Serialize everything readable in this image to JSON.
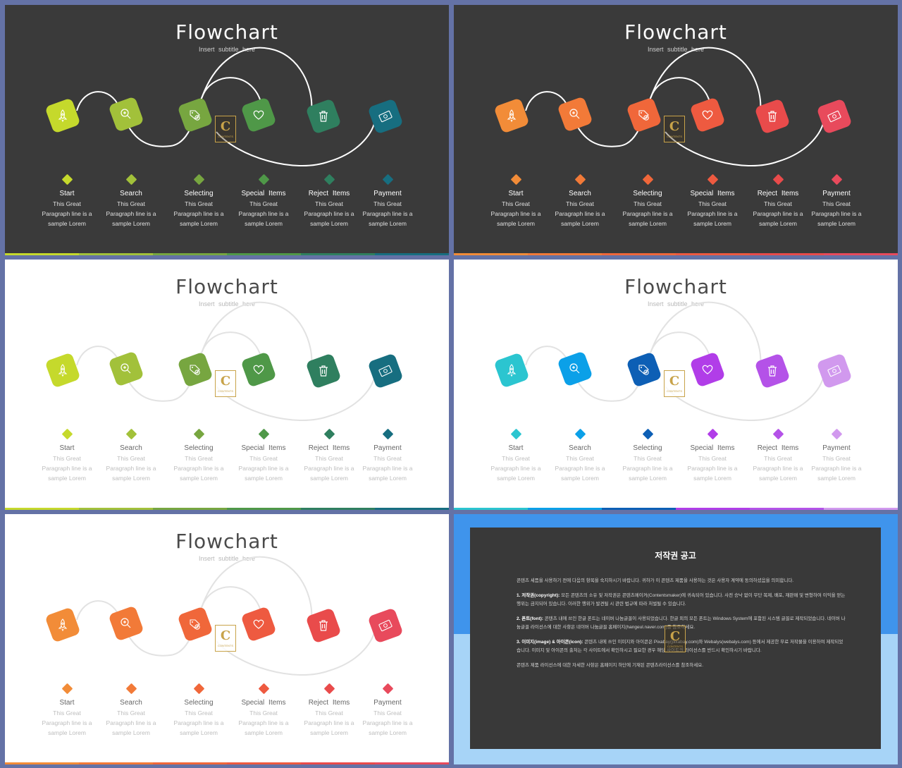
{
  "slide": {
    "title": "Flowchart",
    "subtitle": "Insert  subtitle  here",
    "steps": [
      {
        "name": "Start",
        "icon": "rocket-icon",
        "desc": [
          "This Great",
          "Paragraph line is a",
          "sample Lorem"
        ]
      },
      {
        "name": "Search",
        "icon": "magnifier-icon",
        "desc": [
          "This Great",
          "Paragraph line is a",
          "sample Lorem"
        ]
      },
      {
        "name": "Selecting",
        "icon": "tag-check-icon",
        "desc": [
          "This Great",
          "Paragraph line is a",
          "sample Lorem"
        ]
      },
      {
        "name": "Special  Items",
        "icon": "heart-icon",
        "desc": [
          "This Great",
          "Paragraph line is a",
          "sample Lorem"
        ]
      },
      {
        "name": "Reject  Items",
        "icon": "trash-icon",
        "desc": [
          "This Great",
          "Paragraph line is a",
          "sample Lorem"
        ]
      },
      {
        "name": "Payment",
        "icon": "money-icon",
        "desc": [
          "This Great",
          "Paragraph line is a",
          "sample Lorem"
        ]
      }
    ]
  },
  "logo": {
    "letter": "C",
    "text": "CONTENTS"
  },
  "themes": {
    "green": [
      "#c5d92c",
      "#a2c13a",
      "#77a640",
      "#4f9848",
      "#2f7f5f",
      "#176e80"
    ],
    "orange_red": [
      "#f28c38",
      "#f27a38",
      "#f0673a",
      "#ee5a40",
      "#e94b4b",
      "#e84a5c"
    ],
    "blue_purple": [
      "#2bc5d0",
      "#0ba0e8",
      "#0d5fb5",
      "#b13de8",
      "#b452e8",
      "#d199ee"
    ]
  },
  "notice": {
    "title": "저작권 공고",
    "p1": "콘텐츠 세픔을 사용하기 전에 다음의 항목을 숙지하시기 바랍니다. 귀하가 이 콘텐츠 제품을 사용하는 것은 사용자 계약에 동의하셨음을 의미합니다.",
    "p2_head": "1. 저작권(copyright):",
    "p2": " 모든 콘텐츠의 소유 및 저작권은 콘텐츠메이커(Contentsmaker)에 귀속되어 있습니다. 사전 승낙 없이 무단 복제, 배포, 재판매 및 변형하여 이익을 얻는 행위는 금지되어 있습니다. 이러한 행위가 발견될 시 관련 법규에 따라 처벌될 수 있습니다.",
    "p3_head": "2. 폰트(font):",
    "p3": " 콘텐츠 내에 쓰인 한글 폰트는 네이버 나눔글꼴이 사용되었습니다. 한글 외의 모든 폰트는 Windows System에 포함된 시스템 글꼴로 제작되었습니다. 네이버 나눔글꼴 라이선스에 대한 사항은 네이버 나눔글꼴 홈페이지(hangeul.naver.com)를 참조하세요.",
    "p4_head": "3. 이미지(image) & 아이콘(icon):",
    "p4": " 콘텐츠 내에 쓰인 이미지와 아이콘은 Pixabay(pixabay.com)와 Webalys(webalys.com) 등에서 제공한 무료 저작물을 이용하여 제작되었습니다. 이미지 및 아이콘의 출처는 각 사이트에서 확인하시고 필요한 경우 해당 사이트의 라이선스를 반드시 확인하시기 바랍니다.",
    "p5": "콘텐츠 제품 라이선스에 대한 자세한 사항은 홈페이지 하단에 기재된 콘텐츠라이선스를 참조하세요."
  }
}
